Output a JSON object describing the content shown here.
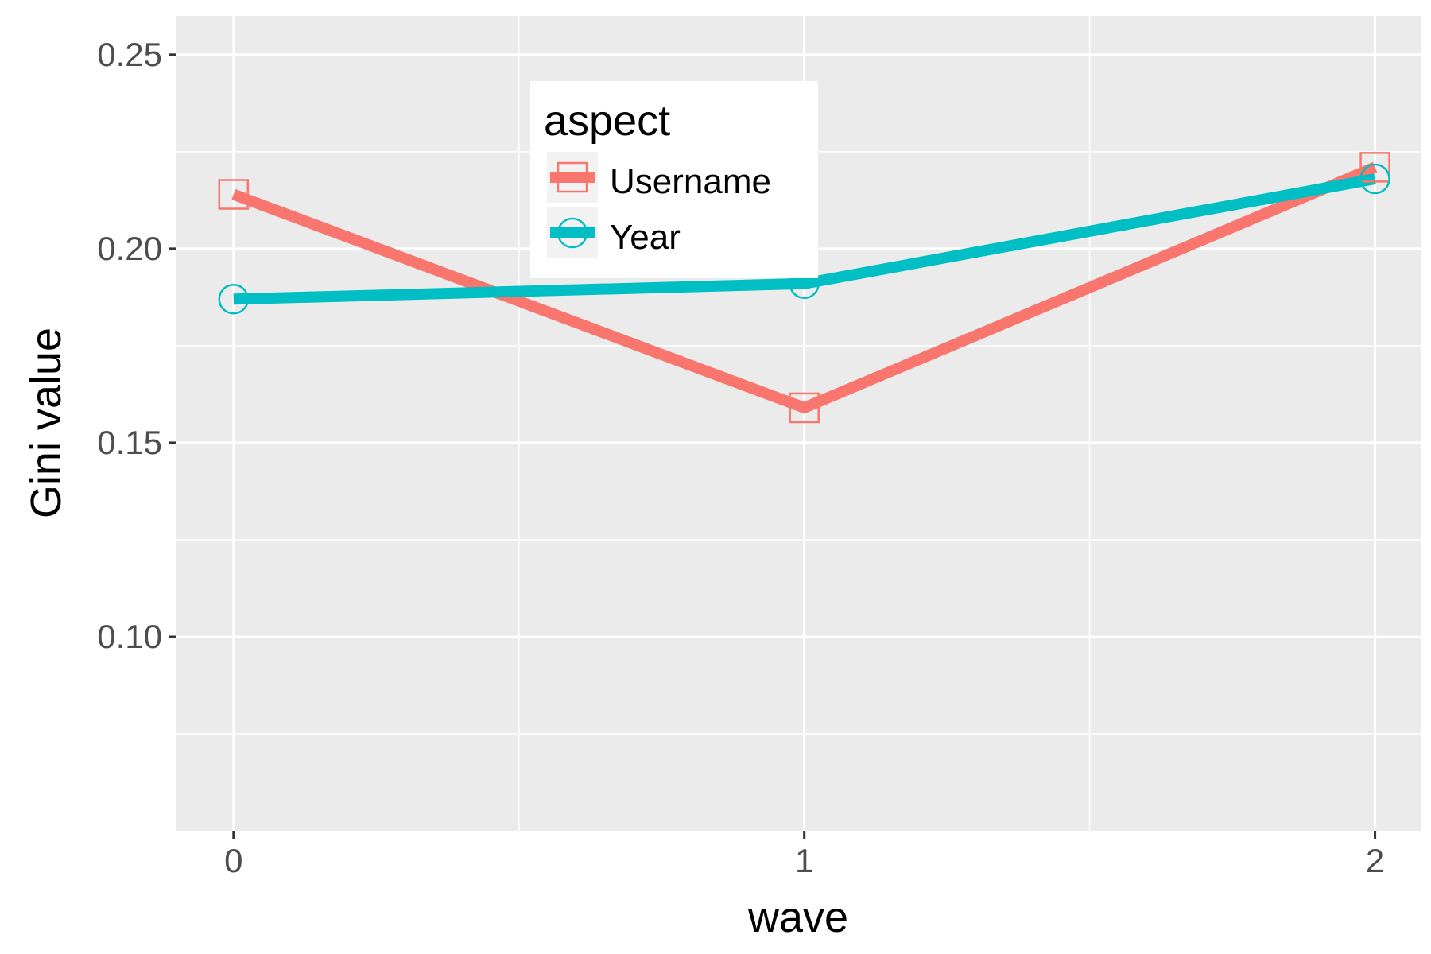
{
  "chart_data": {
    "type": "line",
    "xlabel": "wave",
    "ylabel": "Gini value",
    "x": [
      0,
      1,
      2
    ],
    "xticks": [
      "0",
      "1",
      "2"
    ],
    "yticks": [
      "0.10",
      "0.15",
      "0.20",
      "0.25"
    ],
    "ylim": [
      0.05,
      0.26
    ],
    "xlim": [
      -0.1,
      2.08
    ],
    "grid": true,
    "legend": {
      "title": "aspect",
      "placement": "top-center"
    },
    "series": [
      {
        "name": "Username",
        "values": [
          0.214,
          0.159,
          0.221
        ],
        "color": "#F8766D",
        "marker": "square"
      },
      {
        "name": "Year",
        "values": [
          0.187,
          0.191,
          0.218
        ],
        "color": "#00BFC4",
        "marker": "circle"
      }
    ],
    "colors": {
      "panel": "#EBEBEB",
      "grid": "#FFFFFF"
    }
  }
}
